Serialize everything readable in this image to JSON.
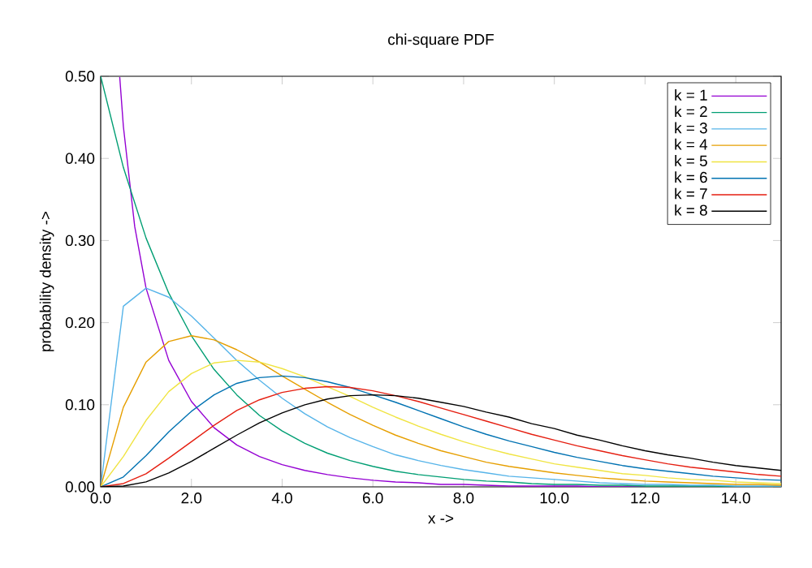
{
  "chart_data": {
    "type": "line",
    "title": "chi-square PDF",
    "xlabel": "x ->",
    "ylabel": "probability density ->",
    "x": [
      0,
      0.5,
      1,
      1.5,
      2,
      2.5,
      3,
      3.5,
      4,
      4.5,
      5,
      5.5,
      6,
      6.5,
      7,
      7.5,
      8,
      8.5,
      9,
      9.5,
      10,
      10.5,
      11,
      11.5,
      12,
      12.5,
      13,
      13.5,
      14,
      14.5,
      15
    ],
    "xlim": [
      0,
      15
    ],
    "ylim": [
      0,
      0.5
    ],
    "xticks": [
      {
        "value": 0,
        "label": "0.0"
      },
      {
        "value": 2,
        "label": "2.0"
      },
      {
        "value": 4,
        "label": "4.0"
      },
      {
        "value": 6,
        "label": "6.0"
      },
      {
        "value": 8,
        "label": "8.0"
      },
      {
        "value": 10,
        "label": "10.0"
      },
      {
        "value": 12,
        "label": "12.0"
      },
      {
        "value": 14,
        "label": "14.0"
      }
    ],
    "yticks": [
      {
        "value": 0,
        "label": "0.00"
      },
      {
        "value": 0.1,
        "label": "0.10"
      },
      {
        "value": 0.2,
        "label": "0.20"
      },
      {
        "value": 0.3,
        "label": "0.30"
      },
      {
        "value": 0.4,
        "label": "0.40"
      },
      {
        "value": 0.5,
        "label": "0.50"
      }
    ],
    "grid": false,
    "legend": "top right",
    "marker": "none",
    "line_style": "solid",
    "series": [
      {
        "name": "k = 1",
        "color": "#9400d3",
        "x": [
          0.42,
          0.5,
          0.75,
          1,
          1.5,
          2,
          2.5,
          3,
          3.5,
          4,
          4.5,
          5,
          5.5,
          6,
          6.5,
          7,
          7.5,
          8,
          8.5,
          9,
          9.5,
          10,
          10.5,
          11,
          11.5,
          12
        ],
        "values": [
          0.499,
          0.439,
          0.317,
          0.242,
          0.154,
          0.104,
          0.072,
          0.051,
          0.037,
          0.027,
          0.02,
          0.015,
          0.011,
          0.008,
          0.006,
          0.005,
          0.003,
          0.003,
          0.002,
          0.001,
          0.001,
          0.001,
          0.001,
          0,
          0,
          0
        ]
      },
      {
        "name": "k = 2",
        "color": "#009e73",
        "values": [
          0.5,
          0.389,
          0.303,
          0.236,
          0.184,
          0.143,
          0.112,
          0.087,
          0.068,
          0.053,
          0.041,
          0.032,
          0.025,
          0.019,
          0.015,
          0.012,
          0.009,
          0.007,
          0.006,
          0.004,
          0.003,
          0.003,
          0.002,
          0.002,
          0.001,
          0.001,
          0.001,
          0.001,
          0,
          0,
          0
        ]
      },
      {
        "name": "k = 3",
        "color": "#56b4e9",
        "values": [
          0,
          0.22,
          0.242,
          0.231,
          0.208,
          0.181,
          0.154,
          0.13,
          0.108,
          0.089,
          0.073,
          0.06,
          0.049,
          0.039,
          0.032,
          0.026,
          0.021,
          0.017,
          0.013,
          0.011,
          0.009,
          0.007,
          0.005,
          0.004,
          0.003,
          0.003,
          0.002,
          0.002,
          0.001,
          0.001,
          0.001
        ]
      },
      {
        "name": "k = 4",
        "color": "#e69f00",
        "values": [
          0,
          0.097,
          0.152,
          0.177,
          0.184,
          0.179,
          0.167,
          0.152,
          0.135,
          0.119,
          0.103,
          0.088,
          0.075,
          0.063,
          0.053,
          0.044,
          0.037,
          0.03,
          0.025,
          0.021,
          0.017,
          0.014,
          0.011,
          0.009,
          0.007,
          0.006,
          0.005,
          0.004,
          0.003,
          0.003,
          0.002
        ]
      },
      {
        "name": "k = 5",
        "color": "#f0e442",
        "values": [
          0,
          0.037,
          0.081,
          0.116,
          0.138,
          0.151,
          0.154,
          0.152,
          0.144,
          0.134,
          0.122,
          0.11,
          0.097,
          0.085,
          0.074,
          0.064,
          0.055,
          0.047,
          0.04,
          0.034,
          0.028,
          0.024,
          0.02,
          0.016,
          0.014,
          0.011,
          0.009,
          0.008,
          0.006,
          0.005,
          0.004
        ]
      },
      {
        "name": "k = 6",
        "color": "#0072b2",
        "values": [
          0,
          0.012,
          0.038,
          0.067,
          0.092,
          0.112,
          0.126,
          0.133,
          0.135,
          0.133,
          0.128,
          0.121,
          0.112,
          0.103,
          0.093,
          0.083,
          0.073,
          0.064,
          0.056,
          0.049,
          0.042,
          0.036,
          0.031,
          0.026,
          0.022,
          0.019,
          0.016,
          0.013,
          0.011,
          0.009,
          0.008
        ]
      },
      {
        "name": "k = 7",
        "color": "#e51e10",
        "values": [
          0,
          0.004,
          0.016,
          0.035,
          0.055,
          0.075,
          0.093,
          0.106,
          0.115,
          0.12,
          0.122,
          0.121,
          0.117,
          0.111,
          0.104,
          0.096,
          0.088,
          0.08,
          0.072,
          0.064,
          0.057,
          0.05,
          0.044,
          0.038,
          0.033,
          0.028,
          0.024,
          0.021,
          0.018,
          0.015,
          0.013
        ]
      },
      {
        "name": "k = 8",
        "color": "#000000",
        "values": [
          0,
          0.001,
          0.006,
          0.017,
          0.031,
          0.047,
          0.063,
          0.078,
          0.09,
          0.1,
          0.107,
          0.111,
          0.112,
          0.111,
          0.108,
          0.103,
          0.098,
          0.091,
          0.085,
          0.077,
          0.071,
          0.063,
          0.057,
          0.05,
          0.044,
          0.039,
          0.035,
          0.03,
          0.026,
          0.023,
          0.02
        ]
      }
    ]
  }
}
